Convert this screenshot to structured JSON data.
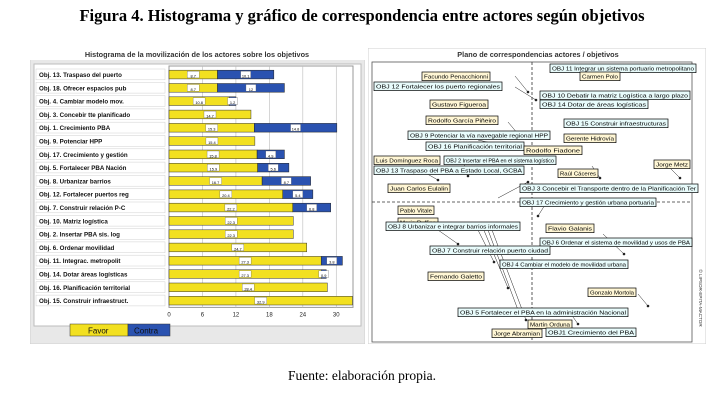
{
  "figure_title": "Figura 4. Histograma y gráfico de correspondencia entre actores según objetivos",
  "source": "Fuente: elaboración propia.",
  "chart_data": [
    {
      "type": "bar",
      "orientation": "horizontal",
      "stacked": true,
      "title": "Histograma de la movilización de los actores sobre los objetivos",
      "categories": [
        "Obj. 13. Traspaso del puerto",
        "Obj. 18. Ofrecer espacios pub",
        "Obj. 4. Cambiar modelo mov.",
        "Obj. 3. Concebir tte planificado",
        "Obj. 1. Crecimiento PBA",
        "Obj. 9. Potenciar HPP",
        "Obj. 17. Crecimiento y gestión",
        "Obj. 5. Fortalecer PBA Nación",
        "Obj. 8. Urbanizar barrios",
        "Obj. 12. Fortalecer puertos reg",
        "Obj. 7. Construir relación P-C",
        "Obj. 10. Matriz logística",
        "Obj. 2. Insertar PBA sis. log",
        "Obj. 6. Ordenar movilidad",
        "Obj. 11. Integrac. metropolit",
        "Obj. 14. Dotar áreas logísticas",
        "Obj. 16. Planificación territorial",
        "Obj. 15. Construir infraestruct."
      ],
      "series": [
        {
          "name": "Favor",
          "color": "#f2e020",
          "values": [
            8.7,
            8.7,
            10.8,
            14.7,
            15.3,
            15.4,
            15.8,
            15.9,
            16.7,
            20.4,
            22.2,
            22.3,
            22.3,
            24.7,
            27.3,
            27.3,
            28.4,
            32.9
          ]
        },
        {
          "name": "Contra",
          "color": "#2a52b0",
          "values": [
            10.1,
            12.0,
            1.2,
            0,
            14.8,
            0,
            4.9,
            5.6,
            8.7,
            5.4,
            6.8,
            0,
            0,
            0,
            3.8,
            0.9,
            0,
            0
          ]
        }
      ],
      "value_labels": {
        "favor": [
          "8.7",
          "8.7",
          "10.8",
          "14.7",
          "15.3",
          "15.4",
          "15.8",
          "15.9",
          "16.7",
          "20.4",
          "22.2",
          "22.3",
          "22.3",
          "24.7",
          "27.3",
          "27.3",
          "28.4",
          "32.9"
        ],
        "contra": [
          "10.1",
          "12",
          "1.2",
          "",
          "14.8",
          "",
          "4.9",
          "5.6",
          "8.7",
          "5.4",
          "6.8",
          "",
          "",
          "",
          "3.8",
          "0.9",
          "",
          ""
        ]
      },
      "xlim": [
        0,
        33
      ],
      "xticks": [
        "0",
        "6",
        "12",
        "18",
        "24",
        "30"
      ],
      "legend": [
        "Favor",
        "Contra"
      ],
      "legend_position": "bottom-left",
      "grid": true
    },
    {
      "type": "scatter",
      "title": "Plano de correspondencias actores / objetivos",
      "side_label": "© LIPSOR-EPITA-MACTOR",
      "grid": false,
      "axes": "dashed cross",
      "labels": [
        "OBJ 11 Integrar un sistema portuario metropolitano",
        "Facundo Penacchionni",
        "Carmen Polo",
        "OBJ 12 Fortalecer los puerto regionales",
        "OBJ 10 Debatir la matriz Logística a largo plazo",
        "OBJ 14 Dotar de áreas logísticas",
        "Gustavo Figueroa",
        "Rodolfo García Piñeiro",
        "OBJ 15 Construir infraestructuras",
        "OBJ 9 Potenciar la vía navegable regional HPP",
        "Gerente Hidrovía",
        "OBJ 16 Planificación territorial",
        "Rodolfo Fiadone",
        "Luis Domínguez Roca",
        "OBJ 2 Insertar el PBA en el sistema logístico",
        "Jorge Metz",
        "OBJ 13 Traspaso del PBA a Estado Local, GCBA",
        "Raúl Cáceres",
        "Juan Carlos Eulalin",
        "OBJ 3 Concebir el Transporte dentro de la Planificación Ter",
        "OBJ 17 Crecimiento y gestión urbana portuaria",
        "Pablo Vitale",
        "Mario Ruffino",
        "OBJ 8 Urbanizar e integrar barrios informales",
        "Flavio Galanis",
        "OBJ 6 Ordenar el sistema de movilidad y usos de PBA",
        "OBJ 7 Construir relación puerto ciudad",
        "OBJ 4 Cambiar el modelo de movilidad urbana",
        "Fernando Galetto",
        "Gonzalo Mortola",
        "OBJ 5 Fortalecer el PBA en la administración Nacional",
        "Martín Orduna",
        "Jorge Abramian",
        "OBJ1 Crecimiento del PBA"
      ]
    }
  ]
}
